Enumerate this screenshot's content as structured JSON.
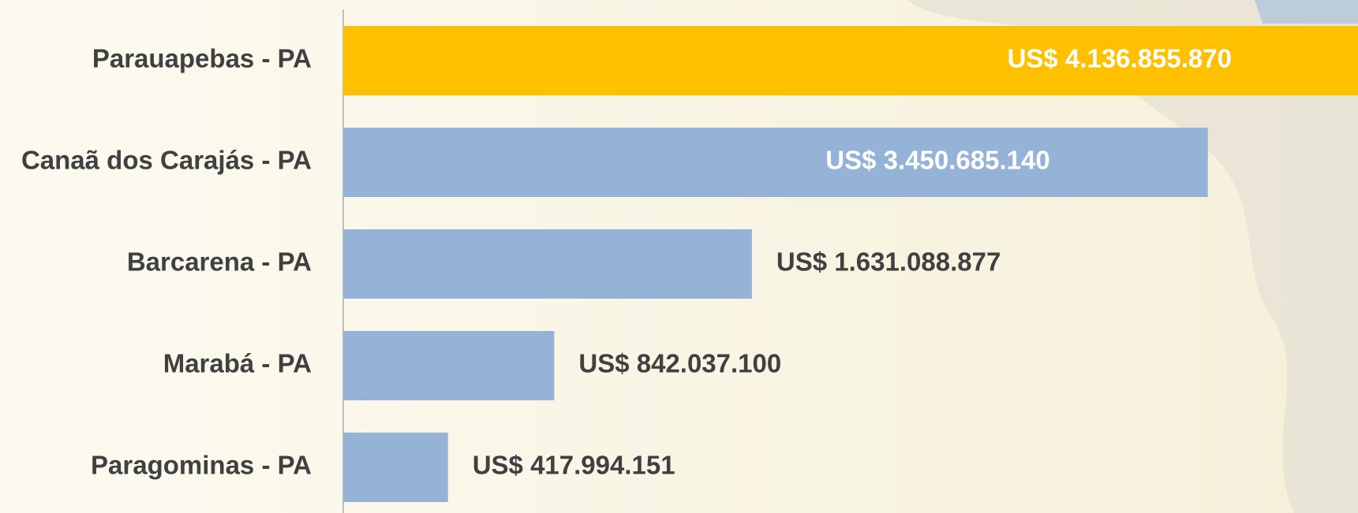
{
  "chart_data": {
    "type": "bar",
    "orientation": "horizontal",
    "categories": [
      "Parauapebas - PA",
      "Canaã dos Carajás - PA",
      "Barcarena - PA",
      "Marabá - PA",
      "Paragominas - PA"
    ],
    "values": [
      4136855870,
      3450685140,
      1631088877,
      842037100,
      417994151
    ],
    "value_labels": [
      "US$ 4.136.855.870",
      "US$ 3.450.685.140",
      "US$ 1.631.088.877",
      "US$ 842.037.100",
      "US$ 417.994.151"
    ],
    "colors": [
      "#FFC000",
      "#95B3D7",
      "#95B3D7",
      "#95B3D7",
      "#95B3D7"
    ],
    "xlim": [
      0,
      4050000000
    ]
  }
}
